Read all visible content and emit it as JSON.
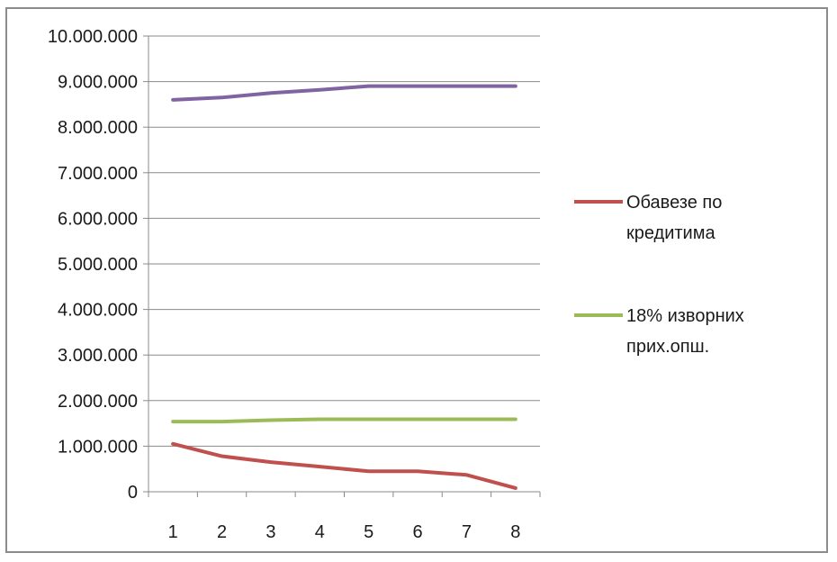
{
  "chart_data": {
    "type": "line",
    "x": [
      1,
      2,
      3,
      4,
      5,
      6,
      7,
      8
    ],
    "ylim": [
      0,
      10000000
    ],
    "yticks": [
      0,
      1000000,
      2000000,
      3000000,
      4000000,
      5000000,
      6000000,
      7000000,
      8000000,
      9000000,
      10000000
    ],
    "ytick_labels": [
      "0",
      "1.000.000",
      "2.000.000",
      "3.000.000",
      "4.000.000",
      "5.000.000",
      "6.000.000",
      "7.000.000",
      "8.000.000",
      "9.000.000",
      "10.000.000"
    ],
    "xtick_labels": [
      "1",
      "2",
      "3",
      "4",
      "5",
      "6",
      "7",
      "8"
    ],
    "grid": true,
    "legend_position": "right",
    "series": [
      {
        "key": "credit",
        "name_lines": [
          "Обавезе по",
          "кредитима"
        ],
        "color": "#c0504d",
        "values": [
          1050000,
          780000,
          650000,
          550000,
          450000,
          450000,
          370000,
          80000
        ]
      },
      {
        "key": "overhead",
        "name_lines": [
          "18% изворних",
          "прих.опш."
        ],
        "color": "#9bbb59",
        "values": [
          1540000,
          1540000,
          1570000,
          1590000,
          1590000,
          1590000,
          1590000,
          1590000
        ]
      },
      {
        "key": "total",
        "color": "#8064a2",
        "values": [
          8600000,
          8650000,
          8750000,
          8820000,
          8900000,
          8900000,
          8900000,
          8900000
        ]
      }
    ]
  }
}
